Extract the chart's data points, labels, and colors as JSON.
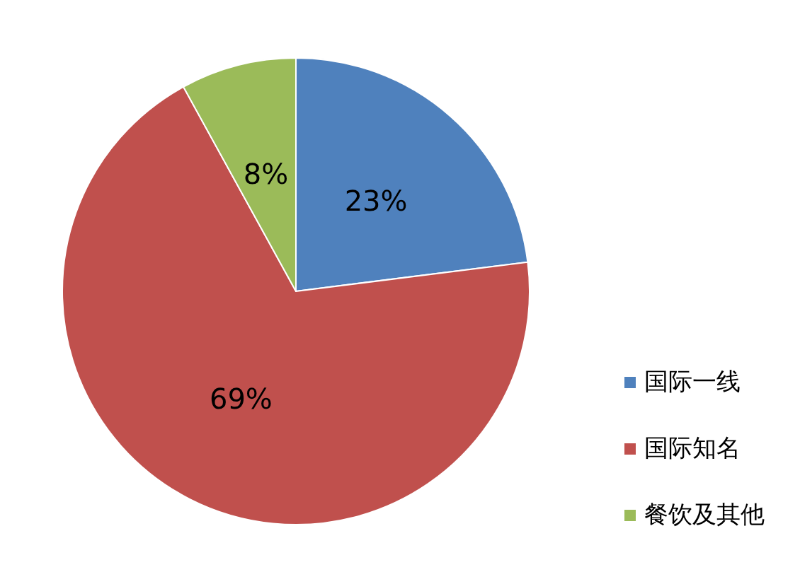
{
  "chart_data": {
    "type": "pie",
    "categories": [
      "国际一线",
      "国际知名",
      "餐饮及其他"
    ],
    "values": [
      23,
      69,
      8
    ],
    "colors": [
      "#4f81bd",
      "#c0504d",
      "#9bbb59"
    ],
    "value_labels": [
      "23%",
      "69%",
      "8%"
    ],
    "legend": "bottom right"
  }
}
